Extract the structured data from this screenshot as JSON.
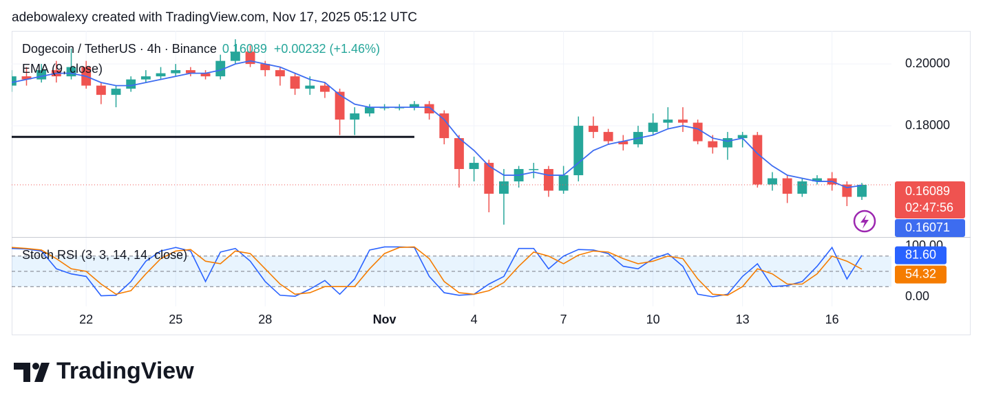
{
  "header": {
    "attribution": "adebowalexy created with TradingView.com, Nov 17, 2025 05:12 UTC"
  },
  "footer": {
    "logo_text": "TradingView"
  },
  "chart_data": [
    {
      "type": "candlestick",
      "title": "Dogecoin / TetherUS · 4h · Binance",
      "last_label": "0.16089",
      "change_label": "+0.00232 (+1.46%)",
      "countdown": "02:47:56",
      "categories": [
        null,
        null,
        null,
        null,
        null,
        null,
        null,
        null,
        null,
        null,
        null,
        null,
        null,
        null,
        null,
        null,
        null,
        null,
        null,
        null,
        null,
        null,
        null,
        null,
        null,
        null,
        null,
        null,
        null,
        null,
        null,
        null,
        null,
        null,
        null,
        null,
        null,
        null,
        null,
        null,
        null,
        null,
        null,
        null,
        null,
        null,
        null,
        null,
        null,
        null,
        null,
        null,
        null,
        null,
        null,
        null,
        null,
        null
      ],
      "xticks": [
        {
          "value": 5,
          "label": "22"
        },
        {
          "value": 11,
          "label": "25"
        },
        {
          "value": 17,
          "label": "28"
        },
        {
          "value": 25,
          "label": "Nov"
        },
        {
          "value": 31,
          "label": "4"
        },
        {
          "value": 37,
          "label": "7"
        },
        {
          "value": 43,
          "label": "10"
        },
        {
          "value": 49,
          "label": "13"
        },
        {
          "value": 55,
          "label": "16"
        }
      ],
      "ylim": [
        0.144,
        0.2107
      ],
      "yticks": [
        {
          "value": 0.2,
          "label": "0.20000"
        },
        {
          "value": 0.18,
          "label": "0.18000"
        }
      ],
      "grid": true,
      "up_color": "#26a69a",
      "down_color": "#ef5350",
      "candles": {
        "open": [
          0.193,
          0.196,
          0.195,
          0.198,
          0.196,
          0.199,
          0.193,
          0.19,
          0.192,
          0.195,
          0.196,
          0.197,
          0.198,
          0.197,
          0.196,
          0.201,
          0.204,
          0.2,
          0.198,
          0.196,
          0.192,
          0.193,
          0.191,
          0.182,
          0.184,
          0.186,
          0.186,
          0.186,
          0.187,
          0.184,
          0.176,
          0.166,
          0.168,
          0.158,
          0.162,
          0.166,
          0.166,
          0.159,
          0.164,
          0.18,
          0.178,
          0.175,
          0.174,
          0.178,
          0.181,
          0.182,
          0.181,
          0.175,
          0.173,
          0.176,
          0.177,
          0.161,
          0.163,
          0.158,
          0.162,
          0.163,
          0.161,
          0.157
        ],
        "high": [
          0.198,
          0.199,
          0.2,
          0.201,
          0.205,
          0.201,
          0.194,
          0.193,
          0.196,
          0.198,
          0.199,
          0.2,
          0.199,
          0.198,
          0.203,
          0.208,
          0.206,
          0.201,
          0.199,
          0.197,
          0.196,
          0.194,
          0.192,
          0.186,
          0.187,
          0.187,
          0.187,
          0.188,
          0.188,
          0.185,
          0.177,
          0.17,
          0.169,
          0.166,
          0.167,
          0.168,
          0.167,
          0.167,
          0.183,
          0.183,
          0.179,
          0.177,
          0.18,
          0.184,
          0.186,
          0.186,
          0.182,
          0.177,
          0.178,
          0.178,
          0.178,
          0.165,
          0.164,
          0.163,
          0.164,
          0.165,
          0.162,
          0.1615
        ],
        "low": [
          0.191,
          0.193,
          0.194,
          0.194,
          0.195,
          0.192,
          0.187,
          0.186,
          0.191,
          0.194,
          0.195,
          0.196,
          0.196,
          0.195,
          0.195,
          0.2,
          0.199,
          0.196,
          0.193,
          0.19,
          0.19,
          0.189,
          0.177,
          0.177,
          0.183,
          0.185,
          0.185,
          0.185,
          0.182,
          0.174,
          0.16,
          0.162,
          0.152,
          0.148,
          0.16,
          0.163,
          0.157,
          0.158,
          0.162,
          0.176,
          0.174,
          0.172,
          0.173,
          0.177,
          0.179,
          0.178,
          0.174,
          0.171,
          0.169,
          0.173,
          0.16,
          0.159,
          0.155,
          0.157,
          0.161,
          0.159,
          0.154,
          0.156
        ],
        "close": [
          0.196,
          0.195,
          0.198,
          0.196,
          0.199,
          0.193,
          0.19,
          0.192,
          0.195,
          0.196,
          0.197,
          0.198,
          0.197,
          0.196,
          0.201,
          0.204,
          0.2,
          0.198,
          0.196,
          0.192,
          0.193,
          0.191,
          0.182,
          0.184,
          0.186,
          0.186,
          0.186,
          0.187,
          0.184,
          0.176,
          0.166,
          0.168,
          0.158,
          0.162,
          0.166,
          0.166,
          0.159,
          0.164,
          0.18,
          0.178,
          0.175,
          0.174,
          0.178,
          0.181,
          0.182,
          0.181,
          0.175,
          0.173,
          0.176,
          0.177,
          0.161,
          0.163,
          0.158,
          0.162,
          0.163,
          0.161,
          0.157,
          0.16089
        ]
      },
      "series": [
        {
          "name": "EMA (9, close)",
          "color": "#3d6cf0",
          "last_label": "0.16071",
          "values": [
            0.194,
            0.195,
            0.196,
            0.197,
            0.197,
            0.196,
            0.194,
            0.193,
            0.193,
            0.194,
            0.195,
            0.196,
            0.197,
            0.197,
            0.198,
            0.2,
            0.201,
            0.2,
            0.199,
            0.197,
            0.195,
            0.194,
            0.19,
            0.187,
            0.186,
            0.186,
            0.186,
            0.186,
            0.186,
            0.182,
            0.176,
            0.172,
            0.167,
            0.164,
            0.164,
            0.165,
            0.164,
            0.164,
            0.168,
            0.172,
            0.174,
            0.175,
            0.176,
            0.177,
            0.179,
            0.18,
            0.179,
            0.176,
            0.175,
            0.176,
            0.171,
            0.167,
            0.164,
            0.163,
            0.162,
            0.162,
            0.16,
            0.16071
          ]
        }
      ],
      "horizontal_line": {
        "value": 0.1764,
        "x": [
          0,
          27
        ],
        "color": "#131722"
      }
    },
    {
      "type": "line",
      "title": "Stoch RSI (3, 3, 14, 14, close)",
      "ylim": [
        0,
        100
      ],
      "yticks": [
        {
          "value": 100,
          "label": "100.00"
        },
        {
          "value": 0,
          "label": "0.00"
        }
      ],
      "levels": [
        80,
        50,
        20
      ],
      "band": [
        20,
        80
      ],
      "series": [
        {
          "color": "#2962ff",
          "last_label": "81.60",
          "values": [
            95,
            94,
            90,
            55,
            45,
            40,
            2,
            3,
            30,
            70,
            90,
            97,
            90,
            30,
            88,
            95,
            70,
            30,
            3,
            1,
            15,
            32,
            5,
            35,
            92,
            98,
            98,
            97,
            40,
            8,
            3,
            5,
            25,
            40,
            95,
            95,
            55,
            80,
            93,
            92,
            85,
            60,
            55,
            75,
            85,
            60,
            5,
            0,
            5,
            40,
            65,
            20,
            22,
            30,
            60,
            97,
            35,
            81.6
          ]
        },
        {
          "color": "#f57c00",
          "last_label": "54.32",
          "values": [
            97,
            95,
            92,
            75,
            55,
            50,
            25,
            5,
            12,
            45,
            75,
            90,
            93,
            70,
            65,
            90,
            85,
            55,
            25,
            5,
            8,
            20,
            20,
            20,
            55,
            85,
            97,
            98,
            75,
            30,
            8,
            5,
            12,
            28,
            60,
            88,
            80,
            65,
            82,
            90,
            88,
            75,
            65,
            70,
            80,
            75,
            35,
            5,
            3,
            20,
            55,
            45,
            25,
            25,
            45,
            80,
            70,
            54.32
          ]
        }
      ]
    }
  ]
}
